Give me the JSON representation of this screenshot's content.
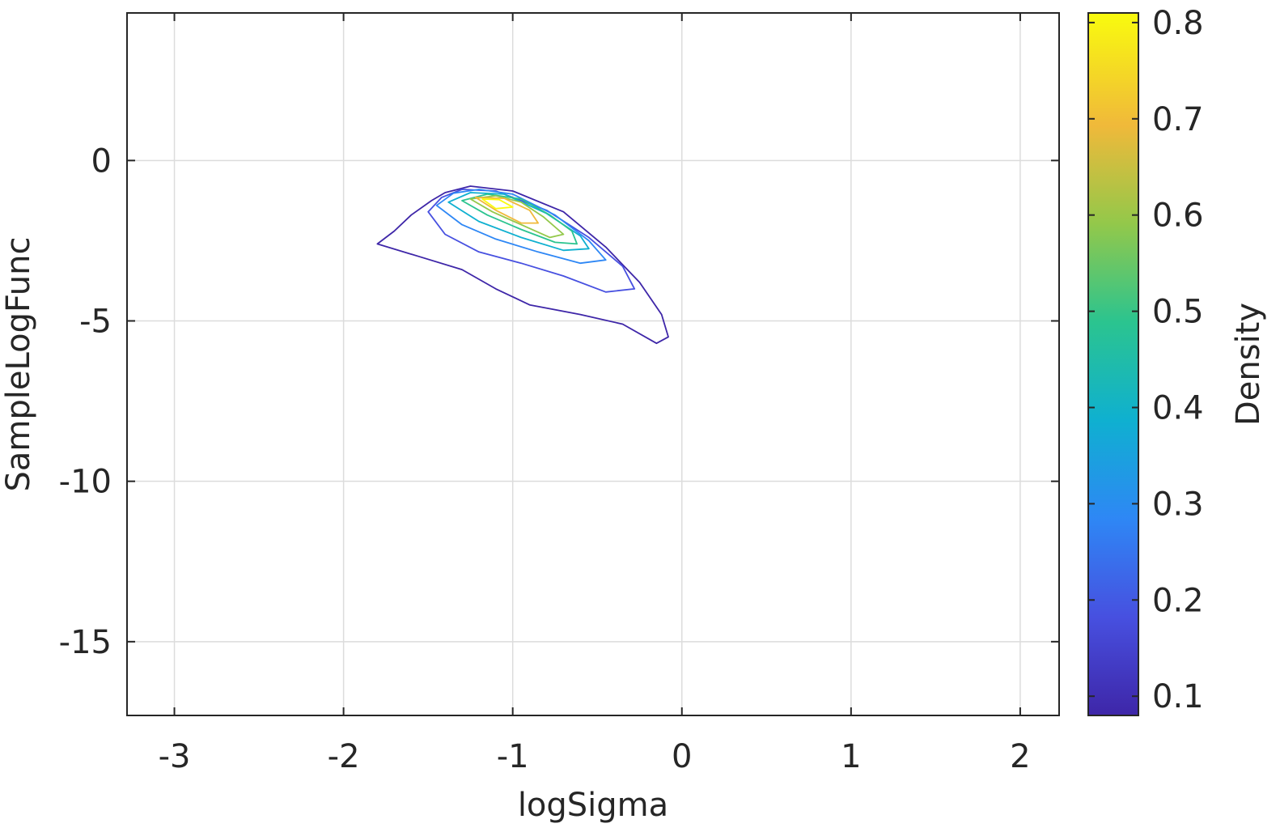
{
  "chart_data": {
    "type": "contour",
    "title": "",
    "xlabel": "logSigma",
    "ylabel": "SampleLogFunc",
    "xlim": [
      -3.28,
      2.23
    ],
    "ylim": [
      -17.3,
      4.6
    ],
    "x_ticks": [
      -3,
      -2,
      -1,
      0,
      1,
      2
    ],
    "x_tick_labels": [
      "-3",
      "-2",
      "-1",
      "0",
      "1",
      "2"
    ],
    "y_ticks": [
      0,
      -5,
      -10,
      -15
    ],
    "y_tick_labels": [
      "0",
      "-5",
      "-10",
      "-15"
    ],
    "grid": true,
    "colorbar": {
      "label": "Density",
      "range": [
        0.08,
        0.81
      ],
      "ticks": [
        0.1,
        0.2,
        0.3,
        0.4,
        0.5,
        0.6,
        0.7,
        0.8
      ],
      "tick_labels": [
        "0.1",
        "0.2",
        "0.3",
        "0.4",
        "0.5",
        "0.6",
        "0.7",
        "0.8"
      ],
      "colormap": "parula"
    },
    "contours": [
      {
        "level": 0.1,
        "color": "#3e26a8",
        "points": [
          [
            -1.8,
            -2.6
          ],
          [
            -1.7,
            -2.2
          ],
          [
            -1.6,
            -1.7
          ],
          [
            -1.48,
            -1.25
          ],
          [
            -1.4,
            -1.0
          ],
          [
            -1.25,
            -0.8
          ],
          [
            -1.0,
            -0.95
          ],
          [
            -0.7,
            -1.6
          ],
          [
            -0.45,
            -2.7
          ],
          [
            -0.25,
            -3.8
          ],
          [
            -0.12,
            -4.8
          ],
          [
            -0.08,
            -5.5
          ],
          [
            -0.15,
            -5.7
          ],
          [
            -0.35,
            -5.1
          ],
          [
            -0.6,
            -4.8
          ],
          [
            -0.9,
            -4.5
          ],
          [
            -1.1,
            -4.0
          ],
          [
            -1.3,
            -3.4
          ],
          [
            -1.55,
            -3.0
          ]
        ]
      },
      {
        "level": 0.2,
        "color": "#4750e0",
        "points": [
          [
            -1.5,
            -1.6
          ],
          [
            -1.42,
            -1.15
          ],
          [
            -1.3,
            -0.9
          ],
          [
            -1.1,
            -0.95
          ],
          [
            -0.8,
            -1.55
          ],
          [
            -0.55,
            -2.4
          ],
          [
            -0.35,
            -3.3
          ],
          [
            -0.28,
            -4.0
          ],
          [
            -0.45,
            -4.1
          ],
          [
            -0.7,
            -3.6
          ],
          [
            -0.95,
            -3.2
          ],
          [
            -1.2,
            -2.85
          ],
          [
            -1.4,
            -2.3
          ]
        ]
      },
      {
        "level": 0.3,
        "color": "#2e87f5",
        "points": [
          [
            -1.45,
            -1.4
          ],
          [
            -1.35,
            -1.02
          ],
          [
            -1.2,
            -0.9
          ],
          [
            -1.0,
            -1.05
          ],
          [
            -0.75,
            -1.7
          ],
          [
            -0.55,
            -2.5
          ],
          [
            -0.45,
            -3.1
          ],
          [
            -0.6,
            -3.2
          ],
          [
            -0.85,
            -2.85
          ],
          [
            -1.1,
            -2.45
          ],
          [
            -1.3,
            -2.0
          ]
        ]
      },
      {
        "level": 0.4,
        "color": "#0fb0d0",
        "points": [
          [
            -1.38,
            -1.3
          ],
          [
            -1.25,
            -1.0
          ],
          [
            -1.05,
            -1.05
          ],
          [
            -0.8,
            -1.65
          ],
          [
            -0.6,
            -2.35
          ],
          [
            -0.55,
            -2.75
          ],
          [
            -0.7,
            -2.8
          ],
          [
            -0.95,
            -2.4
          ],
          [
            -1.2,
            -1.9
          ]
        ]
      },
      {
        "level": 0.5,
        "color": "#2bc48f",
        "points": [
          [
            -1.3,
            -1.25
          ],
          [
            -1.15,
            -1.05
          ],
          [
            -0.95,
            -1.2
          ],
          [
            -0.78,
            -1.7
          ],
          [
            -0.65,
            -2.2
          ],
          [
            -0.62,
            -2.6
          ],
          [
            -0.75,
            -2.55
          ],
          [
            -0.95,
            -2.15
          ],
          [
            -1.15,
            -1.7
          ]
        ]
      },
      {
        "level": 0.6,
        "color": "#93c84a",
        "points": [
          [
            -1.25,
            -1.2
          ],
          [
            -1.1,
            -1.1
          ],
          [
            -0.95,
            -1.3
          ],
          [
            -0.82,
            -1.75
          ],
          [
            -0.7,
            -2.3
          ],
          [
            -0.78,
            -2.4
          ],
          [
            -0.95,
            -2.0
          ],
          [
            -1.12,
            -1.6
          ]
        ]
      },
      {
        "level": 0.7,
        "color": "#f0b93a",
        "points": [
          [
            -1.22,
            -1.15
          ],
          [
            -1.05,
            -1.18
          ],
          [
            -0.9,
            -1.55
          ],
          [
            -0.85,
            -1.95
          ],
          [
            -0.95,
            -1.95
          ],
          [
            -1.1,
            -1.55
          ]
        ]
      },
      {
        "level": 0.8,
        "color": "#f9fb0e",
        "points": [
          [
            -1.18,
            -1.2
          ],
          [
            -1.08,
            -1.22
          ],
          [
            -1.0,
            -1.45
          ],
          [
            -1.1,
            -1.5
          ]
        ]
      }
    ]
  }
}
